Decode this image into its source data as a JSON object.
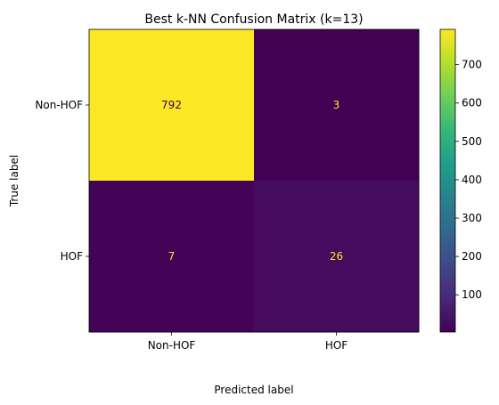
{
  "chart_data": {
    "type": "heatmap",
    "title": "Best k-NN Confusion Matrix (k=13)",
    "xlabel": "Predicted label",
    "ylabel": "True label",
    "x_categories": [
      "Non-HOF",
      "HOF"
    ],
    "y_categories": [
      "Non-HOF",
      "HOF"
    ],
    "values": [
      [
        792,
        3
      ],
      [
        7,
        26
      ]
    ],
    "colormap": "viridis",
    "vmin": 3,
    "vmax": 792,
    "colorbar_ticks": [
      100,
      200,
      300,
      400,
      500,
      600,
      700
    ],
    "grid": false
  },
  "colors": {
    "text_on_dark": "#fde725",
    "text_on_light": "#440154",
    "axes": "#000000",
    "background": "#ffffff"
  }
}
